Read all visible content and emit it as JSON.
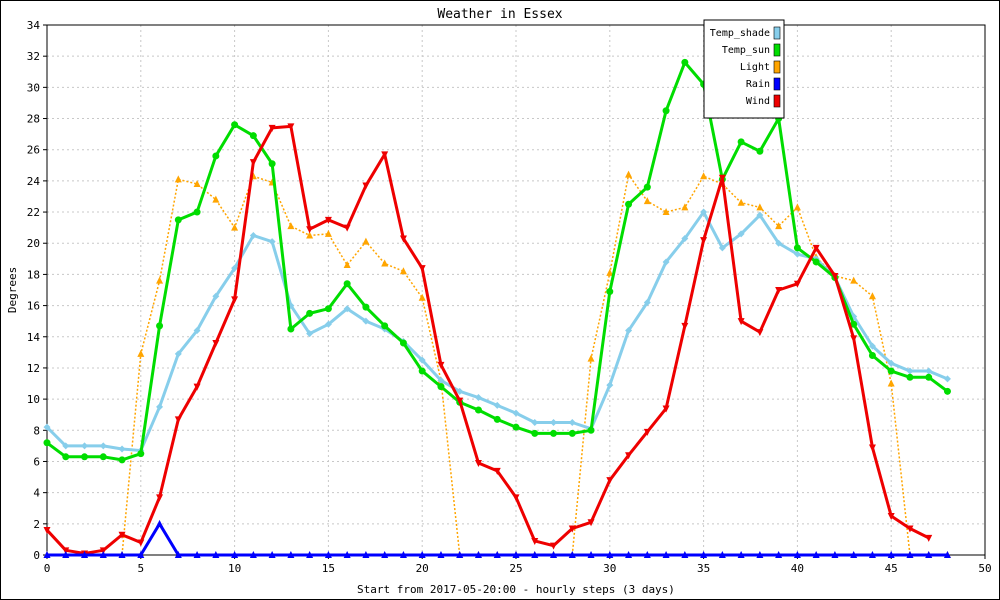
{
  "chart_data": {
    "type": "line",
    "title": "Weather in Essex",
    "xlabel": "Start from 2017-05-20:00 - hourly steps (3 days)",
    "ylabel": "Degrees",
    "xlim": [
      0,
      50
    ],
    "ylim": [
      0,
      34
    ],
    "xticks": [
      "0",
      "5",
      "10",
      "15",
      "20",
      "25",
      "30",
      "35",
      "40",
      "45",
      "50"
    ],
    "yticks": [
      "0",
      "2",
      "4",
      "6",
      "8",
      "10",
      "12",
      "14",
      "16",
      "18",
      "20",
      "22",
      "24",
      "26",
      "28",
      "30",
      "32",
      "34"
    ],
    "grid": true,
    "legend_position": "top-right",
    "series": [
      {
        "name": "Temp_shade",
        "color": "#87ceeb",
        "marker": "diamond",
        "x": [
          0,
          1,
          2,
          3,
          4,
          5,
          6,
          7,
          8,
          9,
          10,
          11,
          12,
          13,
          14,
          15,
          16,
          17,
          18,
          19,
          20,
          21,
          22,
          23,
          24,
          25,
          26,
          27,
          28,
          29,
          30,
          31,
          32,
          33,
          34,
          35,
          36,
          37,
          38,
          39,
          40,
          41,
          42,
          43,
          44,
          45,
          46,
          47,
          48
        ],
        "values": [
          8.2,
          7.0,
          7.0,
          7.0,
          6.8,
          6.7,
          9.5,
          12.9,
          14.4,
          16.6,
          18.4,
          20.5,
          20.1,
          16.0,
          14.2,
          14.8,
          15.8,
          15.0,
          14.5,
          13.7,
          12.5,
          11.2,
          10.5,
          10.1,
          9.6,
          9.1,
          8.5,
          8.5,
          8.5,
          8.1,
          10.9,
          14.4,
          16.2,
          18.8,
          20.3,
          22.0,
          19.7,
          20.6,
          21.8,
          20.0,
          19.3,
          19.0,
          17.8,
          15.3,
          13.4,
          12.3,
          11.8,
          11.8,
          11.3
        ]
      },
      {
        "name": "Temp_sun",
        "color": "#00dd00",
        "marker": "circle",
        "x": [
          0,
          1,
          2,
          3,
          4,
          5,
          6,
          7,
          8,
          9,
          10,
          11,
          12,
          13,
          14,
          15,
          16,
          17,
          18,
          19,
          20,
          21,
          22,
          23,
          24,
          25,
          26,
          27,
          28,
          29,
          30,
          31,
          32,
          33,
          34,
          35,
          36,
          37,
          38,
          39,
          40,
          41,
          42,
          43,
          44,
          45,
          46,
          47,
          48
        ],
        "values": [
          7.2,
          6.3,
          6.3,
          6.3,
          6.1,
          6.5,
          14.7,
          21.5,
          22.0,
          25.6,
          27.6,
          26.9,
          25.1,
          14.5,
          15.5,
          15.8,
          17.4,
          15.9,
          14.7,
          13.6,
          11.8,
          10.8,
          9.8,
          9.3,
          8.7,
          8.2,
          7.8,
          7.8,
          7.8,
          8.0,
          16.9,
          22.5,
          23.6,
          28.5,
          31.6,
          30.2,
          24.1,
          26.5,
          25.9,
          28.0,
          19.7,
          18.8,
          17.8,
          14.8,
          12.8,
          11.8,
          11.4,
          11.4,
          10.5
        ]
      },
      {
        "name": "Light",
        "color": "#ffa500",
        "marker": "triangle-up",
        "x": [
          0,
          1,
          2,
          3,
          4,
          5,
          6,
          7,
          8,
          9,
          10,
          11,
          12,
          13,
          14,
          15,
          16,
          17,
          18,
          19,
          20,
          21,
          22,
          23,
          24,
          25,
          26,
          27,
          28,
          29,
          30,
          31,
          32,
          33,
          34,
          35,
          36,
          37,
          38,
          39,
          40,
          41,
          42,
          43,
          44,
          45,
          46,
          47,
          48
        ],
        "values": [
          0,
          0,
          0,
          0,
          0,
          12.9,
          17.6,
          24.1,
          23.8,
          22.8,
          21.0,
          24.3,
          23.9,
          21.1,
          20.5,
          20.6,
          18.6,
          20.1,
          18.7,
          18.2,
          16.5,
          11.2,
          0,
          0,
          0,
          0,
          0,
          0,
          0,
          12.6,
          18.1,
          24.4,
          22.7,
          22.0,
          22.3,
          24.3,
          23.8,
          22.6,
          22.3,
          21.1,
          22.3,
          19.1,
          17.9,
          17.6,
          16.6,
          11.0,
          0,
          0,
          0
        ]
      },
      {
        "name": "Rain",
        "color": "#0000ff",
        "marker": "triangle-up",
        "x": [
          0,
          1,
          2,
          3,
          4,
          5,
          6,
          7,
          8,
          9,
          10,
          11,
          12,
          13,
          14,
          15,
          16,
          17,
          18,
          19,
          20,
          21,
          22,
          23,
          24,
          25,
          26,
          27,
          28,
          29,
          30,
          31,
          32,
          33,
          34,
          35,
          36,
          37,
          38,
          39,
          40,
          41,
          42,
          43,
          44,
          45,
          46,
          47,
          48
        ],
        "values": [
          0,
          0,
          0,
          0,
          0,
          0,
          2.0,
          0,
          0,
          0,
          0,
          0,
          0,
          0,
          0,
          0,
          0,
          0,
          0,
          0,
          0,
          0,
          0,
          0,
          0,
          0,
          0,
          0,
          0,
          0,
          0,
          0,
          0,
          0,
          0,
          0,
          0,
          0,
          0,
          0,
          0,
          0,
          0,
          0,
          0,
          0,
          0,
          0,
          0
        ]
      },
      {
        "name": "Wind",
        "color": "#ee0000",
        "marker": "triangle-down",
        "x": [
          0,
          1,
          2,
          3,
          4,
          5,
          6,
          7,
          8,
          9,
          10,
          11,
          12,
          13,
          14,
          15,
          16,
          17,
          18,
          19,
          20,
          21,
          22,
          23,
          24,
          25,
          26,
          27,
          28,
          29,
          30,
          31,
          32,
          33,
          34,
          35,
          36,
          37,
          38,
          39,
          40,
          41,
          42,
          43,
          44,
          45,
          46,
          47
        ],
        "values": [
          1.6,
          0.3,
          0.1,
          0.3,
          1.3,
          0.8,
          3.7,
          8.7,
          10.8,
          13.6,
          16.4,
          25.2,
          27.4,
          27.5,
          20.9,
          21.5,
          21.0,
          23.7,
          25.7,
          20.3,
          18.4,
          12.2,
          9.9,
          5.9,
          5.4,
          3.7,
          0.9,
          0.6,
          1.7,
          2.1,
          4.8,
          6.4,
          7.9,
          9.4,
          14.7,
          20.2,
          24.2,
          15.0,
          14.3,
          17.0,
          17.4,
          19.7,
          17.9,
          13.9,
          6.9,
          2.5,
          1.7,
          1.1
        ]
      }
    ]
  }
}
